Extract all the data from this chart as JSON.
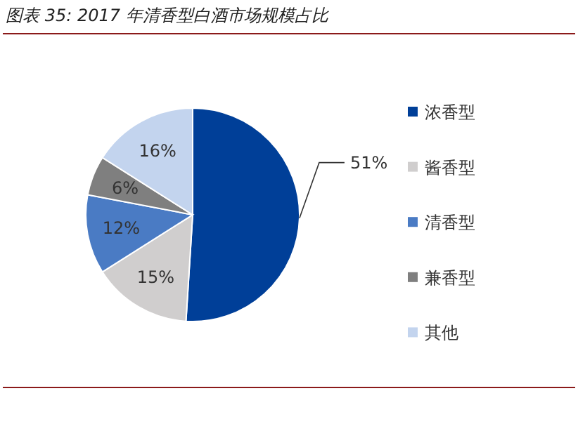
{
  "chart_data": {
    "type": "pie",
    "title": "图表 35:  2017 年清香型白酒市场规模占比",
    "categories": [
      "浓香型",
      "酱香型",
      "清香型",
      "兼香型",
      "其他"
    ],
    "values": [
      51,
      15,
      12,
      6,
      16
    ],
    "colors": [
      "#003f98",
      "#d0cece",
      "#4a7bc4",
      "#7f7f7f",
      "#c3d4ee"
    ],
    "value_labels": [
      "51%",
      "15%",
      "12%",
      "6%",
      "16%"
    ],
    "legend": "right"
  }
}
